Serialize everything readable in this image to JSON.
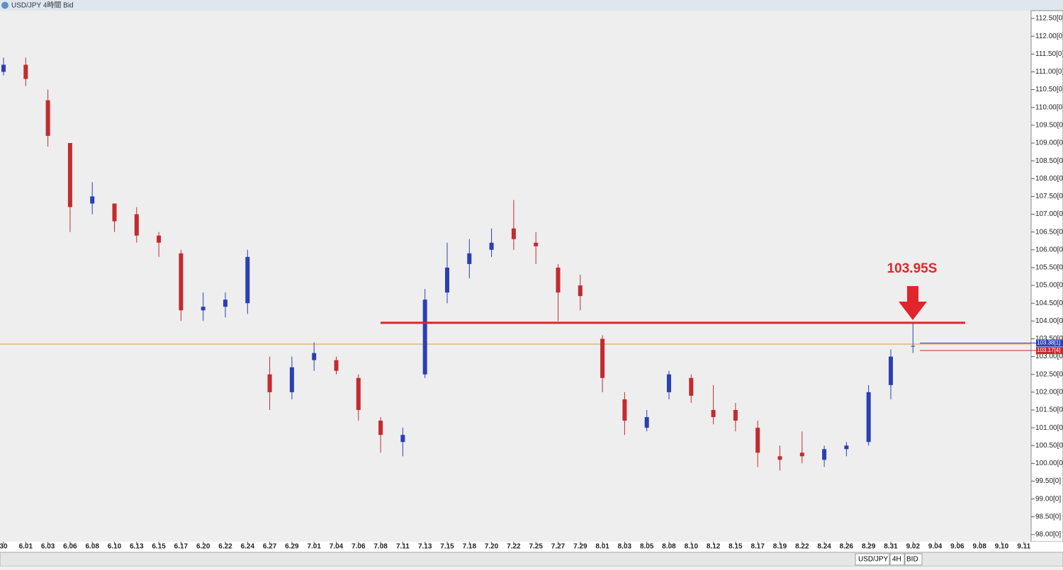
{
  "window": {
    "title": "USD/JPY 4時間 Bid"
  },
  "toolbar": {
    "symbol": "USD/JPY",
    "timeframe": "4H",
    "side": "BID"
  },
  "chart_data": {
    "type": "candlestick",
    "up_color": "#2b3fb3",
    "down_color": "#c42a2f",
    "categories": [
      "30",
      "6.01",
      "6.03",
      "6.06",
      "6.08",
      "6.10",
      "6.13",
      "6.15",
      "6.17",
      "6.20",
      "6.22",
      "6.24",
      "6.27",
      "6.29",
      "7.01",
      "7.04",
      "7.06",
      "7.08",
      "7.11",
      "7.13",
      "7.15",
      "7.18",
      "7.20",
      "7.22",
      "7.25",
      "7.27",
      "7.29",
      "8.01",
      "8.03",
      "8.05",
      "8.08",
      "8.10",
      "8.12",
      "8.15",
      "8.17",
      "8.19",
      "8.22",
      "8.24",
      "8.26",
      "8.29",
      "8.31",
      "9.02",
      "9.04",
      "9.06",
      "9.08",
      "9.10",
      "9.11"
    ],
    "open": [
      111.0,
      111.2,
      110.2,
      109.0,
      107.3,
      107.3,
      107.0,
      106.4,
      105.9,
      104.3,
      104.4,
      104.5,
      102.5,
      102.0,
      102.9,
      102.9,
      102.4,
      101.2,
      100.6,
      102.5,
      104.8,
      105.6,
      106.0,
      106.6,
      106.2,
      105.5,
      105.0,
      103.5,
      101.8,
      101.0,
      102.0,
      102.4,
      101.5,
      101.5,
      101.0,
      100.2,
      100.3,
      100.1,
      100.4,
      100.6,
      102.2,
      103.3,
      null,
      null,
      null,
      null,
      null
    ],
    "high": [
      111.4,
      111.4,
      110.5,
      109.0,
      107.9,
      107.3,
      107.2,
      106.5,
      106.0,
      104.8,
      104.8,
      106.0,
      103.0,
      103.0,
      103.4,
      103.0,
      102.5,
      101.3,
      101.0,
      104.9,
      106.2,
      106.3,
      106.6,
      107.4,
      106.5,
      105.6,
      105.3,
      103.6,
      102.0,
      101.5,
      102.6,
      102.5,
      102.2,
      101.7,
      101.2,
      100.5,
      100.9,
      100.5,
      100.6,
      102.2,
      103.2,
      103.95,
      null,
      null,
      null,
      null,
      null
    ],
    "low": [
      110.9,
      110.6,
      108.9,
      106.5,
      107.0,
      106.5,
      106.2,
      105.8,
      104.0,
      104.0,
      104.1,
      104.2,
      101.5,
      101.8,
      102.6,
      102.5,
      101.2,
      100.3,
      100.2,
      102.4,
      104.5,
      105.2,
      105.8,
      106.0,
      105.6,
      104.0,
      104.3,
      102.0,
      100.8,
      100.9,
      101.8,
      101.7,
      101.1,
      100.9,
      99.9,
      99.8,
      100.0,
      99.9,
      100.2,
      100.5,
      101.8,
      103.1,
      null,
      null,
      null,
      null,
      null
    ],
    "close": [
      111.2,
      110.8,
      109.2,
      107.2,
      107.5,
      106.8,
      106.4,
      106.2,
      104.3,
      104.4,
      104.6,
      105.8,
      102.0,
      102.7,
      103.1,
      102.6,
      101.5,
      100.8,
      100.8,
      104.6,
      105.5,
      105.9,
      106.2,
      106.3,
      106.1,
      104.8,
      104.7,
      102.4,
      101.2,
      101.3,
      102.5,
      101.9,
      101.3,
      101.2,
      100.3,
      100.1,
      100.2,
      100.4,
      100.5,
      102.0,
      103.0,
      103.3,
      null,
      null,
      null,
      null,
      null
    ],
    "ylim": [
      97.8,
      112.72
    ],
    "yticks": [
      {
        "value": 98.0,
        "label": "98.00[0]"
      },
      {
        "value": 98.5,
        "label": "98.50[0]"
      },
      {
        "value": 99.0,
        "label": "99.00[0]"
      },
      {
        "value": 99.5,
        "label": "99.50[0]"
      },
      {
        "value": 100.0,
        "label": "100.00[0]"
      },
      {
        "value": 100.5,
        "label": "100.50[0]"
      },
      {
        "value": 101.0,
        "label": "101.00[0]"
      },
      {
        "value": 101.5,
        "label": "101.50[0]"
      },
      {
        "value": 102.0,
        "label": "102.00[0]"
      },
      {
        "value": 102.5,
        "label": "102.50[0]"
      },
      {
        "value": 103.0,
        "label": "103.00[0]"
      },
      {
        "value": 103.5,
        "label": "103.50[0]"
      },
      {
        "value": 104.0,
        "label": "104.00[0]"
      },
      {
        "value": 104.5,
        "label": "104.50[0]"
      },
      {
        "value": 105.0,
        "label": "105.00[0]"
      },
      {
        "value": 105.5,
        "label": "105.50[0]"
      },
      {
        "value": 106.0,
        "label": "106.00[0]"
      },
      {
        "value": 106.5,
        "label": "106.50[0]"
      },
      {
        "value": 107.0,
        "label": "107.00[0]"
      },
      {
        "value": 107.5,
        "label": "107.50[0]"
      },
      {
        "value": 108.0,
        "label": "108.00[0]"
      },
      {
        "value": 108.5,
        "label": "108.50[0]"
      },
      {
        "value": 109.0,
        "label": "109.00[0]"
      },
      {
        "value": 109.5,
        "label": "109.50[0]"
      },
      {
        "value": 110.0,
        "label": "110.00[0]"
      },
      {
        "value": 110.5,
        "label": "110.50[0]"
      },
      {
        "value": 111.0,
        "label": "111.00[0]"
      },
      {
        "value": 111.5,
        "label": "111.50[0]"
      },
      {
        "value": 112.0,
        "label": "112.00[0]"
      },
      {
        "value": 112.5,
        "label": "112.50[0]"
      }
    ],
    "level": {
      "value": 103.95,
      "label": "103.95S",
      "color": "#e0262b"
    },
    "current_price": {
      "value": 103.35,
      "color": "#e09a3c"
    },
    "price_badges": [
      {
        "value": 103.38,
        "label": "103.38[1]",
        "color": "#2b3fb3"
      },
      {
        "value": 103.17,
        "label": "103.17[4]",
        "color": "#c42a2f"
      }
    ]
  }
}
